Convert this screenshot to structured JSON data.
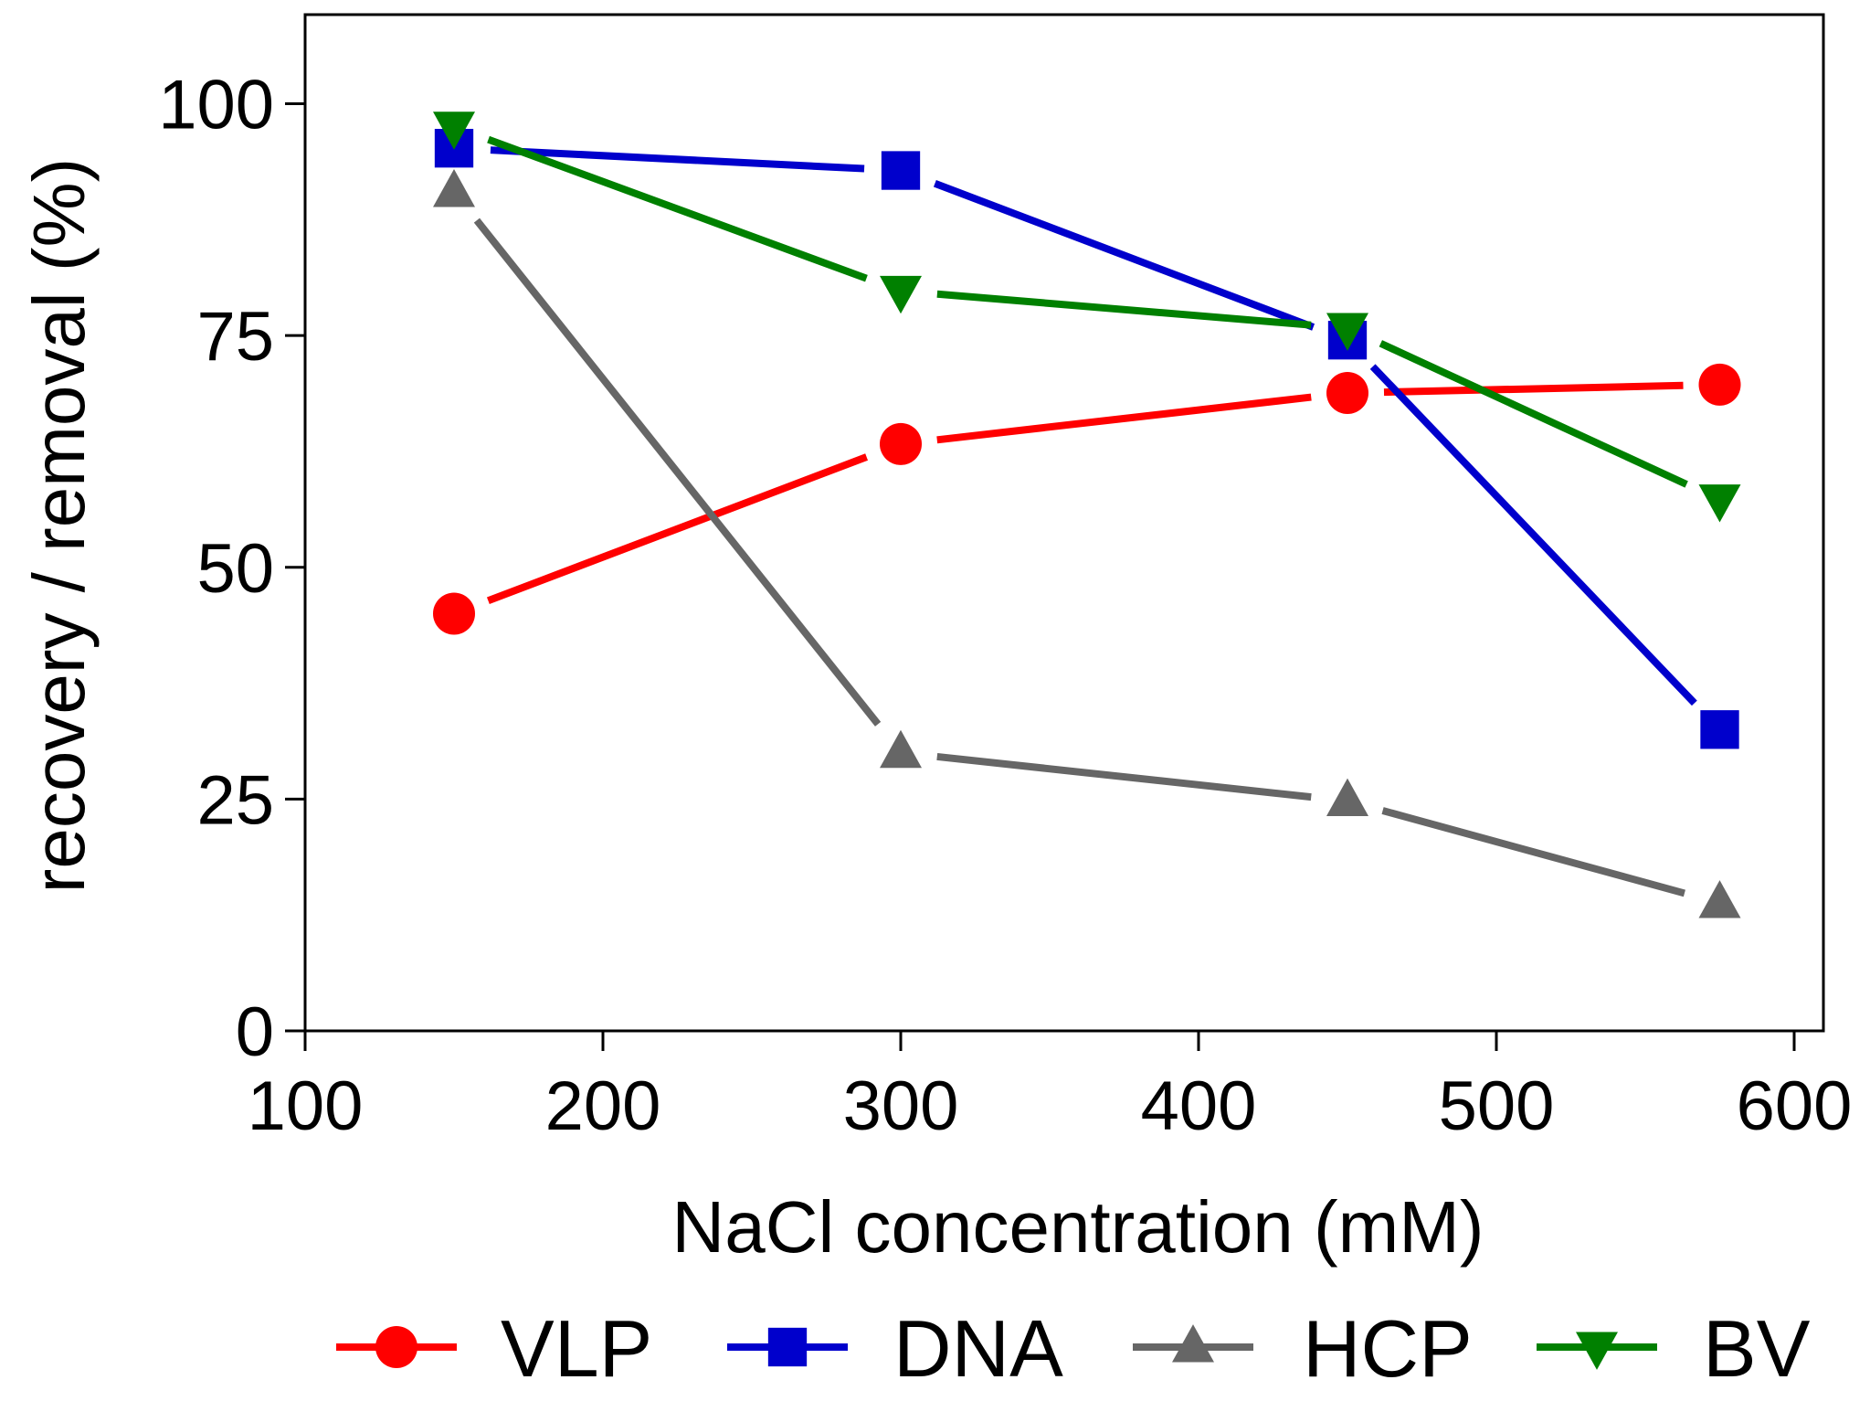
{
  "chart_data": {
    "type": "line",
    "title": "",
    "xlabel": "NaCl concentration (mM)",
    "ylabel": "recovery / removal (%)",
    "xlim": [
      100,
      610
    ],
    "ylim": [
      0,
      110
    ],
    "xticks": [
      100,
      200,
      300,
      400,
      500,
      600
    ],
    "yticks": [
      0,
      25,
      50,
      75,
      100
    ],
    "xtick_labels": [
      "100",
      "200",
      "300",
      "400",
      "500",
      "600"
    ],
    "ytick_labels": [
      "0",
      "25",
      "50",
      "75",
      "100"
    ],
    "grid": false,
    "legend_position": "bottom",
    "series": [
      {
        "name": "VLP",
        "color": "#ff0000",
        "marker": "circle",
        "x": [
          150,
          300,
          450,
          575
        ],
        "y": [
          45,
          63.3,
          68.8,
          69.7
        ]
      },
      {
        "name": "DNA",
        "color": "#0000cc",
        "marker": "square",
        "x": [
          150,
          300,
          450,
          575
        ],
        "y": [
          95.2,
          92.8,
          74.5,
          32.5
        ]
      },
      {
        "name": "HCP",
        "color": "#666666",
        "marker": "triangle-up",
        "x": [
          150,
          300,
          450,
          575
        ],
        "y": [
          90.5,
          30,
          24.8,
          13.8
        ]
      },
      {
        "name": "BV",
        "color": "#008000",
        "marker": "triangle-down",
        "x": [
          150,
          300,
          450,
          575
        ],
        "y": [
          97.5,
          79.8,
          75.8,
          57.3
        ]
      }
    ]
  }
}
